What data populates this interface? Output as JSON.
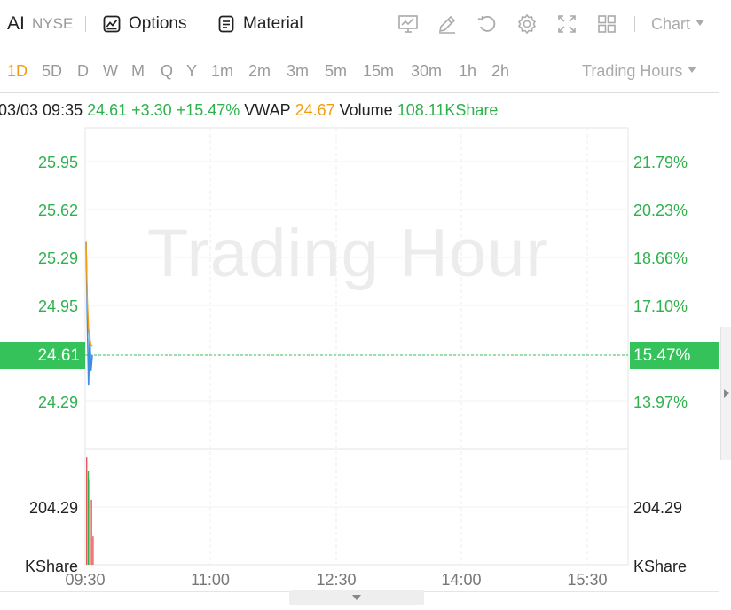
{
  "toolbar": {
    "symbol": "AI",
    "exchange": "NYSE",
    "options_label": "Options",
    "material_label": "Material",
    "chart_label": "Chart",
    "icons": [
      "trend-chart-icon",
      "pencil-icon",
      "refresh-icon",
      "gear-icon",
      "fullscreen-icon",
      "grid-layout-icon"
    ]
  },
  "periods": {
    "items": [
      "1D",
      "5D",
      "D",
      "W",
      "M",
      "Q",
      "Y",
      "1m",
      "2m",
      "3m",
      "5m",
      "15m",
      "30m",
      "1h",
      "2h"
    ],
    "active": "1D",
    "session_label": "Trading Hours"
  },
  "info": {
    "datetime": "03/03 09:35",
    "price": "24.61",
    "change": "+3.30",
    "change_pct": "+15.47%",
    "vwap_label": "VWAP",
    "vwap": "24.67",
    "volume_label": "Volume",
    "volume": "108.11KShare"
  },
  "chart_data": {
    "type": "line",
    "watermark": "Trading Hour",
    "price_axis_left": [
      "25.95",
      "25.62",
      "25.29",
      "24.95",
      "24.61",
      "24.29"
    ],
    "price_axis_right": [
      "21.79%",
      "20.23%",
      "18.66%",
      "17.10%",
      "15.47%",
      "13.97%"
    ],
    "current_price": "24.61",
    "current_pct": "15.47%",
    "volume_axis_left": [
      "204.29",
      "KShare"
    ],
    "volume_axis_right": [
      "204.29",
      "KShare"
    ],
    "x_ticks": [
      "09:30",
      "11:00",
      "12:30",
      "14:00",
      "15:30"
    ],
    "price_series": {
      "x": [
        "09:30",
        "09:31",
        "09:32",
        "09:33",
        "09:34",
        "09:35"
      ],
      "y": [
        25.4,
        24.85,
        24.4,
        24.75,
        24.5,
        24.61
      ]
    },
    "vwap_series": {
      "x": [
        "09:30",
        "09:31",
        "09:32",
        "09:33",
        "09:34",
        "09:35"
      ],
      "y": [
        25.4,
        25.0,
        24.8,
        24.72,
        24.68,
        24.67
      ]
    },
    "volume_bars": {
      "x": [
        "09:30",
        "09:31",
        "09:32",
        "09:33",
        "09:34"
      ],
      "values": [
        380,
        330,
        300,
        230,
        100
      ],
      "colors": [
        "#e8595a",
        "#2fb14d",
        "#2fb14d",
        "#e8595a",
        "#e8595a"
      ]
    },
    "colors": {
      "up": "#2fb14d",
      "down": "#e8595a",
      "price_line": "#3a8ee6",
      "vwap_line": "#f39c12",
      "grid": "#eeeeee"
    }
  }
}
